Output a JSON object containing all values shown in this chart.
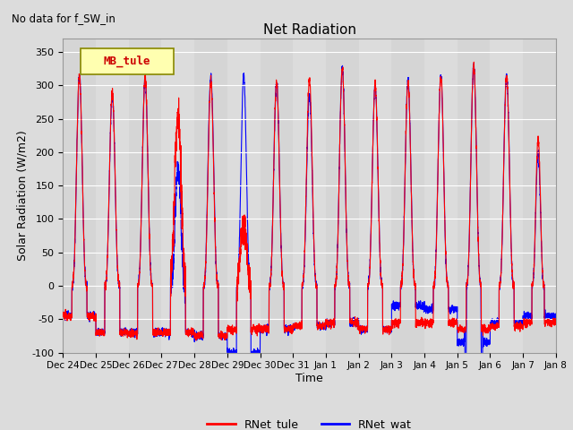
{
  "title": "Net Radiation",
  "subtitle": "No data for f_SW_in",
  "ylabel": "Solar Radiation (W/m2)",
  "xlabel": "Time",
  "legend_label": "MB_tule",
  "legend_entries": [
    "RNet_tule",
    "RNet_wat"
  ],
  "legend_colors": [
    "#ff0000",
    "#0000ff"
  ],
  "ylim": [
    -100,
    370
  ],
  "yticks": [
    -100,
    -50,
    0,
    50,
    100,
    150,
    200,
    250,
    300,
    350
  ],
  "xtick_labels": [
    "Dec 24",
    "Dec 25",
    "Dec 26",
    "Dec 27",
    "Dec 28",
    "Dec 29",
    "Dec 30",
    "Dec 31",
    "Jan 1",
    "Jan 2",
    "Jan 3",
    "Jan 4",
    "Jan 5",
    "Jan 6",
    "Jan 7",
    "Jan 8"
  ],
  "plot_bg_color": "#dcdcdc",
  "fig_bg_color": "#dcdcdc",
  "line_color_tule": "#ff0000",
  "line_color_wat": "#0000ff",
  "line_width": 0.8,
  "grid_color": "#ffffff",
  "alt_band_color": "#c8c8c8"
}
